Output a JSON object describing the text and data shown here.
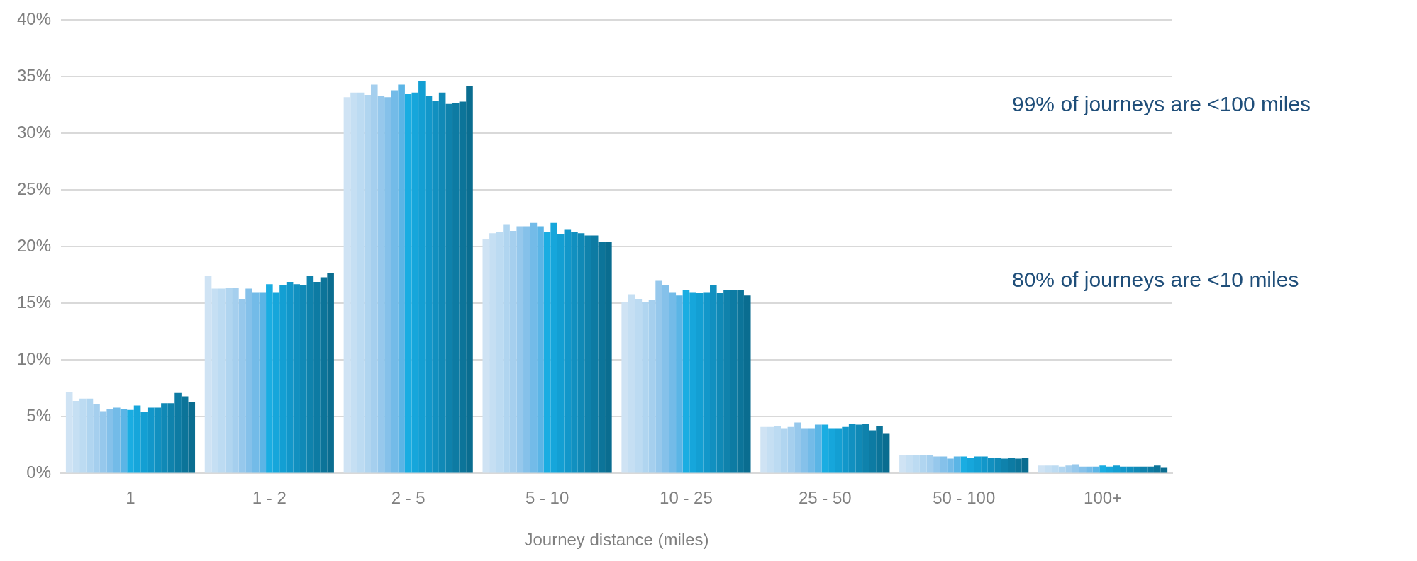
{
  "chart_data": {
    "type": "bar",
    "xlabel": "Journey distance (miles)",
    "categories": [
      "1",
      "1 - 2",
      "2 - 5",
      "5 - 10",
      "10 - 25",
      "25 - 50",
      "50 - 100",
      "100+"
    ],
    "ylim": [
      0,
      40
    ],
    "yticks": [
      {
        "value": 0,
        "label": "0%"
      },
      {
        "value": 5,
        "label": "5%"
      },
      {
        "value": 10,
        "label": "10%"
      },
      {
        "value": 15,
        "label": "15%"
      },
      {
        "value": 20,
        "label": "20%"
      },
      {
        "value": 25,
        "label": "25%"
      },
      {
        "value": 30,
        "label": "30%"
      },
      {
        "value": 35,
        "label": "35%"
      },
      {
        "value": 40,
        "label": "40%"
      }
    ],
    "grid": "y",
    "legend": false,
    "annotations": [
      "99% of journeys are <100 miles",
      "80% of journeys are <10 miles"
    ],
    "series": [
      {
        "color": "#cfe3f4",
        "values": [
          7.2,
          17.4,
          33.2,
          20.7,
          15.1,
          4.1,
          1.6,
          0.7
        ]
      },
      {
        "color": "#c5dff3",
        "values": [
          6.4,
          16.3,
          33.6,
          21.2,
          15.8,
          4.1,
          1.6,
          0.7
        ]
      },
      {
        "color": "#bcdbf2",
        "values": [
          6.6,
          16.3,
          33.6,
          21.3,
          15.4,
          4.2,
          1.6,
          0.7
        ]
      },
      {
        "color": "#b0d5f0",
        "values": [
          6.6,
          16.4,
          33.4,
          22.0,
          15.1,
          4.0,
          1.6,
          0.6
        ]
      },
      {
        "color": "#a5cfee",
        "values": [
          6.1,
          16.4,
          34.3,
          21.4,
          15.3,
          4.1,
          1.6,
          0.7
        ]
      },
      {
        "color": "#96c8ec",
        "values": [
          5.5,
          15.4,
          33.3,
          21.8,
          17.0,
          4.5,
          1.5,
          0.8
        ]
      },
      {
        "color": "#85c1ea",
        "values": [
          5.7,
          16.3,
          33.2,
          21.8,
          16.6,
          4.0,
          1.5,
          0.6
        ]
      },
      {
        "color": "#73bbe8",
        "values": [
          5.8,
          16.0,
          33.8,
          22.1,
          16.0,
          4.0,
          1.3,
          0.6
        ]
      },
      {
        "color": "#5bb5e6",
        "values": [
          5.7,
          16.0,
          34.3,
          21.8,
          15.7,
          4.3,
          1.5,
          0.6
        ]
      },
      {
        "color": "#1aade2",
        "values": [
          5.6,
          16.7,
          33.5,
          21.3,
          16.2,
          4.3,
          1.5,
          0.7
        ]
      },
      {
        "color": "#16a6db",
        "values": [
          6.0,
          16.0,
          33.6,
          22.1,
          16.0,
          4.0,
          1.4,
          0.6
        ]
      },
      {
        "color": "#139fd3",
        "values": [
          5.4,
          16.6,
          34.6,
          21.1,
          15.9,
          4.0,
          1.5,
          0.7
        ]
      },
      {
        "color": "#1297ca",
        "values": [
          5.8,
          16.9,
          33.3,
          21.5,
          16.0,
          4.1,
          1.5,
          0.6
        ]
      },
      {
        "color": "#1190c0",
        "values": [
          5.8,
          16.7,
          32.9,
          21.3,
          16.6,
          4.4,
          1.4,
          0.6
        ]
      },
      {
        "color": "#1089b6",
        "values": [
          6.2,
          16.6,
          33.6,
          21.2,
          15.9,
          4.3,
          1.4,
          0.6
        ]
      },
      {
        "color": "#0f82ac",
        "values": [
          6.2,
          17.4,
          32.6,
          21.0,
          16.2,
          4.4,
          1.3,
          0.6
        ]
      },
      {
        "color": "#0d7ba3",
        "values": [
          7.1,
          16.9,
          32.7,
          21.0,
          16.2,
          3.8,
          1.4,
          0.6
        ]
      },
      {
        "color": "#0c7499",
        "values": [
          6.8,
          17.3,
          32.8,
          20.4,
          16.2,
          4.2,
          1.3,
          0.7
        ]
      },
      {
        "color": "#0a6d90",
        "values": [
          6.3,
          17.7,
          34.2,
          20.4,
          15.7,
          3.5,
          1.4,
          0.5
        ]
      }
    ]
  }
}
